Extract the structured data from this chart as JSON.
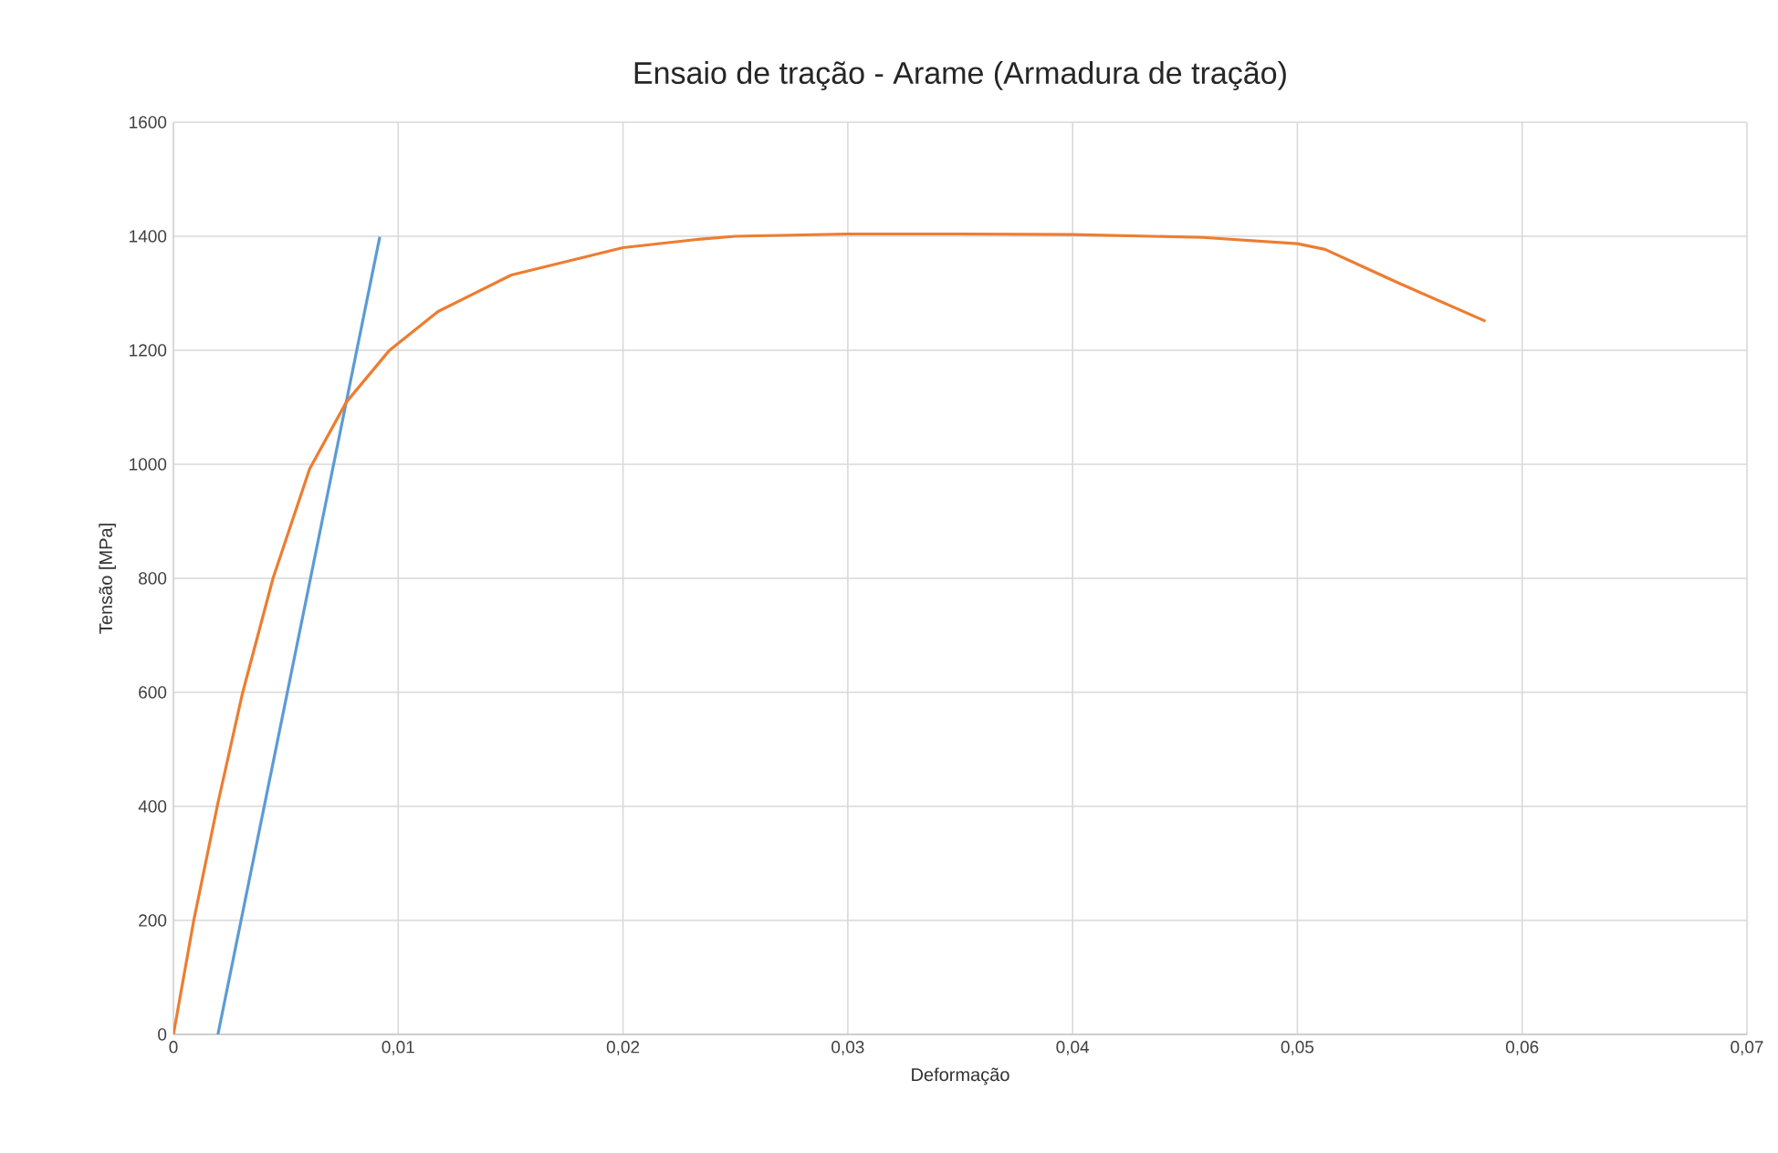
{
  "chart_data": {
    "type": "line",
    "title": "Ensaio de tração - Arame (Armadura de tração)",
    "xlabel": "Deformação",
    "ylabel": "Tensão [MPa]",
    "xlim": [
      0,
      0.07
    ],
    "ylim": [
      0,
      1600
    ],
    "xticks": [
      {
        "value": 0,
        "label": "0"
      },
      {
        "value": 0.01,
        "label": "0,01"
      },
      {
        "value": 0.02,
        "label": "0,02"
      },
      {
        "value": 0.03,
        "label": "0,03"
      },
      {
        "value": 0.04,
        "label": "0,04"
      },
      {
        "value": 0.05,
        "label": "0,05"
      },
      {
        "value": 0.06,
        "label": "0,06"
      },
      {
        "value": 0.07,
        "label": "0,07"
      }
    ],
    "yticks": [
      0,
      200,
      400,
      600,
      800,
      1000,
      1200,
      1400,
      1600
    ],
    "grid": true,
    "marker": "none",
    "line_style": "solid",
    "series": [
      {
        "color": "#5b9bd5",
        "x": [
          0.00198,
          0.00918
        ],
        "values": [
          0,
          1399
        ]
      },
      {
        "color": "#ed7d31",
        "x": [
          0,
          0.0009,
          0.00198,
          0.00307,
          0.00443,
          0.00606,
          0.00769,
          0.00959,
          0.01177,
          0.01503,
          0.02,
          0.0232,
          0.025,
          0.03,
          0.035,
          0.04,
          0.04578,
          0.05,
          0.05123,
          0.0545,
          0.05837
        ],
        "values": [
          0,
          199,
          406,
          598,
          800,
          992,
          1109,
          1199,
          1268,
          1332,
          1380,
          1394,
          1400,
          1404,
          1404,
          1403,
          1398,
          1387,
          1377,
          1318,
          1251
        ]
      }
    ]
  }
}
